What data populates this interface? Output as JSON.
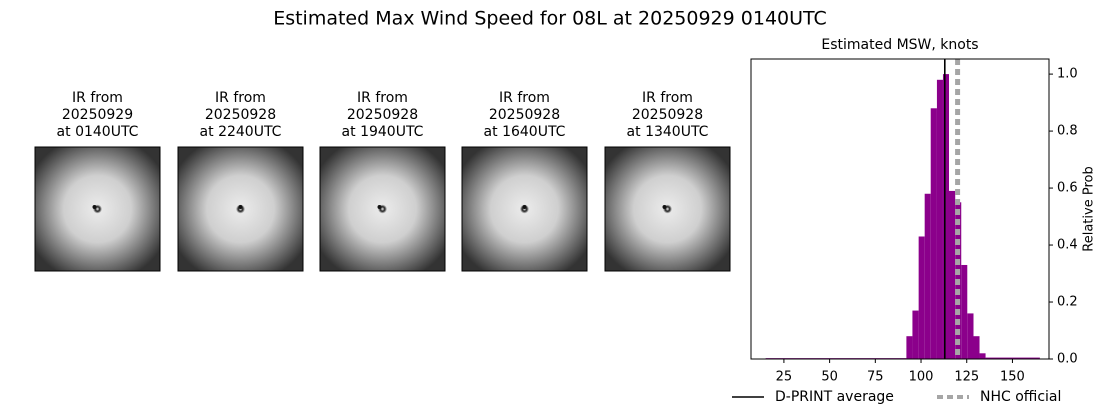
{
  "title": "Estimated Max Wind Speed for 08L at 20250929 0140UTC",
  "panels": [
    {
      "lines": [
        "IR from",
        "20250929",
        "at 0140UTC"
      ]
    },
    {
      "lines": [
        "IR from",
        "20250928",
        "at 2240UTC"
      ]
    },
    {
      "lines": [
        "IR from",
        "20250928",
        "at 1940UTC"
      ]
    },
    {
      "lines": [
        "IR from",
        "20250928",
        "at 1640UTC"
      ]
    },
    {
      "lines": [
        "IR from",
        "20250928",
        "at 1340UTC"
      ]
    }
  ],
  "chart_data": {
    "type": "histogram",
    "title": "Estimated MSW, knots",
    "y_label": "Relative Prob",
    "bins": [
      15,
      92,
      95.3,
      98.7,
      102,
      105.3,
      108.7,
      112,
      115.3,
      118.7,
      122,
      125.3,
      128.7,
      132,
      135.3,
      165
    ],
    "values": [
      0.003,
      0.08,
      0.17,
      0.43,
      0.58,
      0.88,
      0.98,
      1.0,
      0.59,
      0.55,
      0.33,
      0.16,
      0.08,
      0.02,
      0.005
    ],
    "color": "#8b008b",
    "xlim": [
      7,
      170
    ],
    "xticks": [
      25,
      50,
      75,
      100,
      125,
      150
    ],
    "ylim": [
      0,
      1.053
    ],
    "yticks": [
      {
        "value": 0,
        "label": "0.0"
      },
      0.2,
      0.4,
      0.6,
      0.8,
      {
        "value": 1,
        "label": "1.0"
      }
    ],
    "reference_lines": [
      {
        "name": "D-PRINT average",
        "value": 113,
        "color": "#000000",
        "style": "solid"
      },
      {
        "name": "NHC official",
        "value": 120,
        "color": "#a6a6a6",
        "style": "dotted"
      }
    ]
  }
}
